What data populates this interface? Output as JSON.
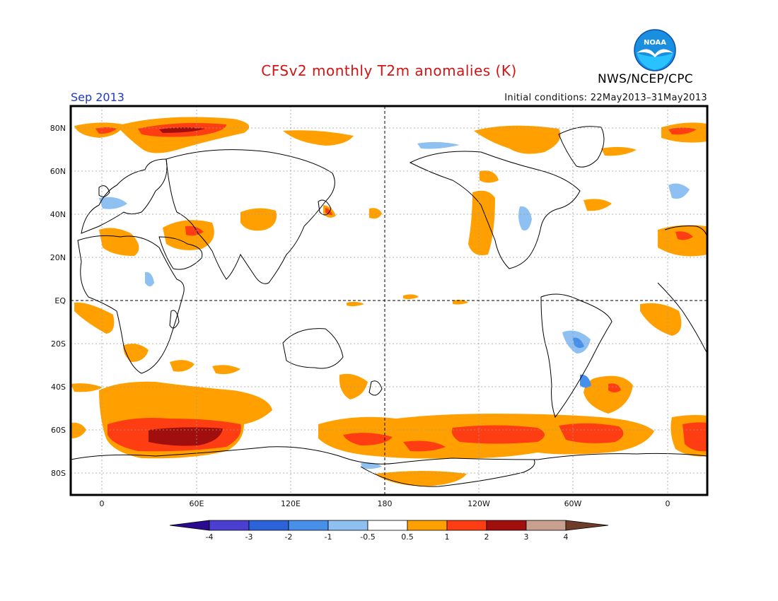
{
  "header": {
    "title": "CFSv2 monthly T2m anomalies (K)",
    "month": "Sep 2013",
    "initial_conditions": "Initial conditions: 22May2013–31May2013",
    "agency": "NWS/NCEP/CPC",
    "logo_text": "NOAA"
  },
  "map": {
    "lat_labels": [
      "80N",
      "60N",
      "40N",
      "20N",
      "EQ",
      "20S",
      "40S",
      "60S",
      "80S"
    ],
    "lon_labels": [
      "0",
      "60E",
      "120E",
      "180",
      "120W",
      "60W",
      "0"
    ]
  },
  "colorbar": {
    "tick_labels": [
      "-4",
      "-3",
      "-2",
      "-1",
      "-0.5",
      "0.5",
      "1",
      "2",
      "3",
      "4"
    ],
    "colors": {
      "lt_m4": "#2a0b8f",
      "m4_m3": "#4b3fd1",
      "m3_m2": "#2d63d8",
      "m2_m1": "#4790ea",
      "m1_m05": "#8ec0f2",
      "m05_05": "#ffffff",
      "p05_1": "#ffa000",
      "p1_2": "#ff3d12",
      "p2_3": "#a10e0e",
      "p3_4": "#c9a08f",
      "gt_4": "#6f3c2c"
    }
  }
}
